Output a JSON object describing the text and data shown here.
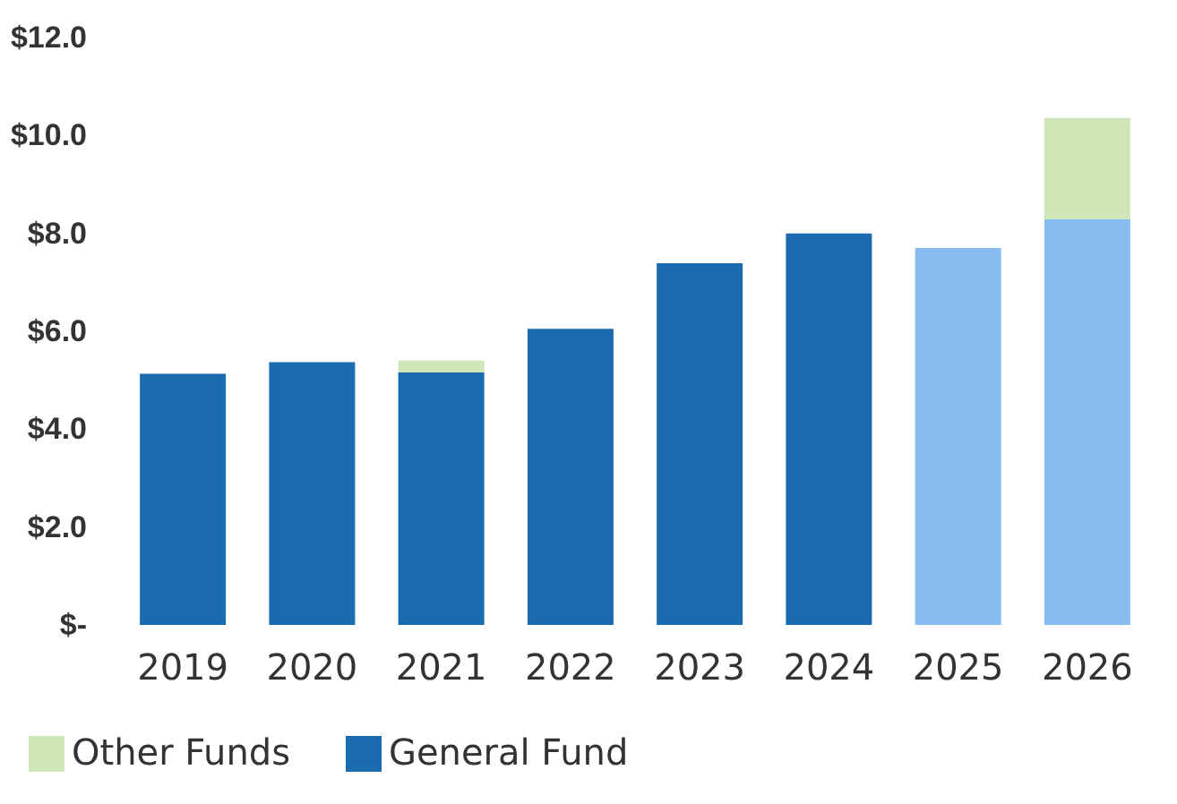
{
  "chart_data": {
    "type": "bar",
    "stacked": true,
    "legend": "bottom",
    "categories": [
      "2019",
      "2020",
      "2021",
      "2022",
      "2023",
      "2024",
      "2025",
      "2026"
    ],
    "series": [
      {
        "name": "General Fund",
        "color": "#1a6caf",
        "colors": [
          "#1a6caf",
          "#1a6caf",
          "#1a6caf",
          "#1a6caf",
          "#1a6caf",
          "#1a6caf",
          "#86bcf0",
          "#86bcf0"
        ],
        "values": [
          5.13,
          5.37,
          5.16,
          6.05,
          7.39,
          8.0,
          7.7,
          8.29
        ]
      },
      {
        "name": "Other Funds",
        "color": "#cfe6b8",
        "values": [
          null,
          null,
          0.24,
          null,
          null,
          null,
          null,
          2.07
        ]
      }
    ],
    "ylim": [
      0,
      12
    ],
    "yticks": [
      {
        "value": 0,
        "label": "$-"
      },
      {
        "value": 2,
        "label": "$2.0"
      },
      {
        "value": 4,
        "label": "$4.0"
      },
      {
        "value": 6,
        "label": "$6.0"
      },
      {
        "value": 8,
        "label": "$8.0"
      },
      {
        "value": 10,
        "label": "$10.0"
      },
      {
        "value": 12,
        "label": "$12.0"
      }
    ],
    "grid": false
  }
}
